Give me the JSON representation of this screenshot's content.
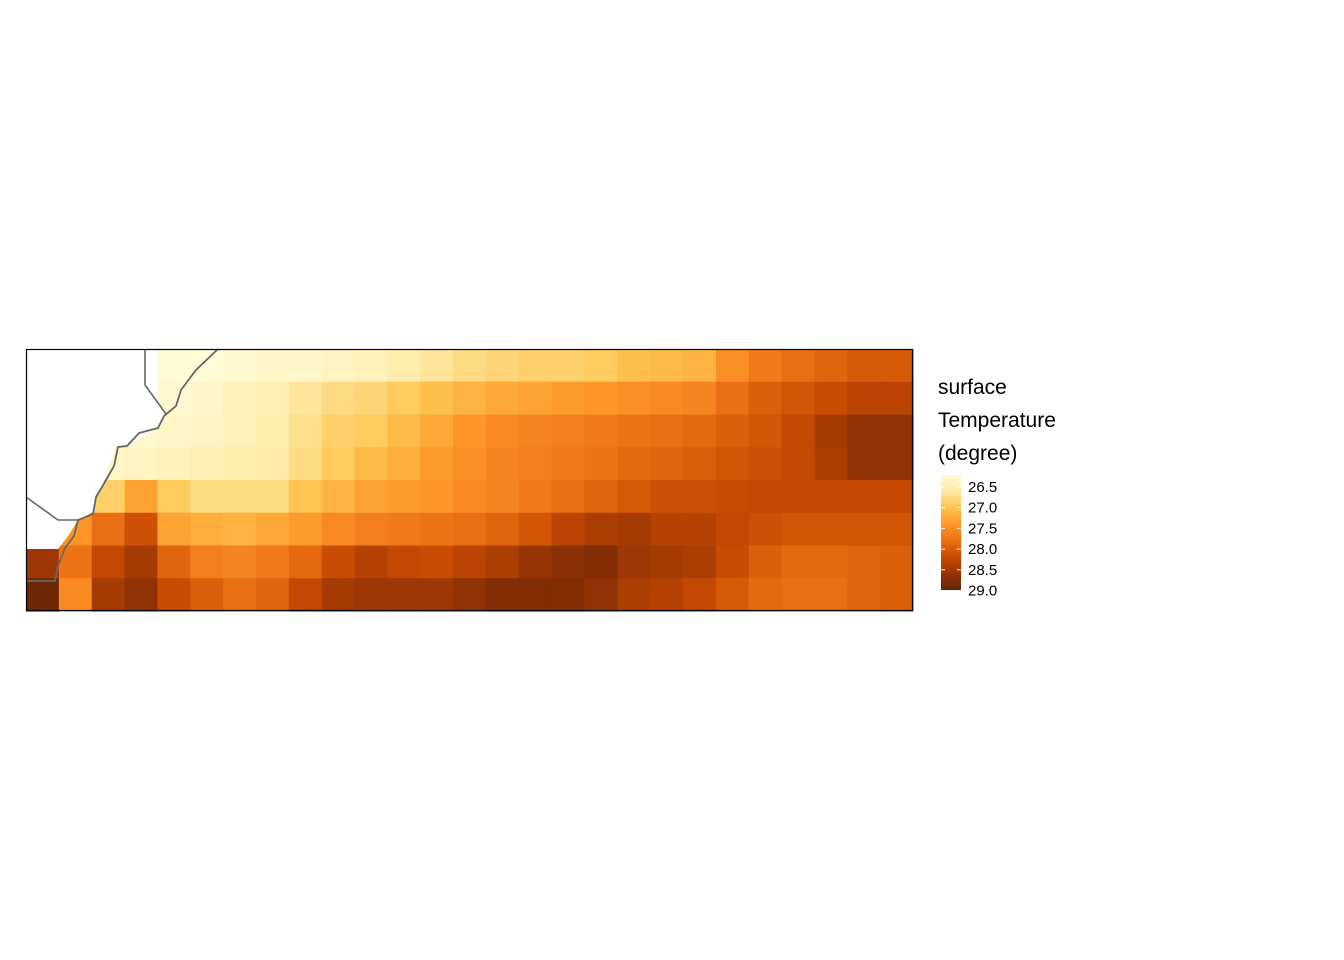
{
  "legend": {
    "title_lines": [
      "surface",
      "Temperature",
      "(degree)"
    ],
    "ticks": [
      "26.5",
      "27.0",
      "27.5",
      "28.0",
      "28.5",
      "29.0"
    ],
    "range": [
      26.5,
      29.0
    ]
  },
  "palette": {
    "low": "#fff7bc",
    "stops": [
      "#fffbd6",
      "#fee9a4",
      "#fec44f",
      "#fe9929",
      "#ec7014",
      "#cc4c02",
      "#993404",
      "#662506"
    ],
    "coastline": "#666666",
    "frame": "#000000",
    "land": "#ffffff"
  },
  "chart_data": {
    "type": "heatmap",
    "variable": "surface Temperature (degree)",
    "rows": 8,
    "cols": 27,
    "note_na": null,
    "grid": [
      [
        null,
        null,
        null,
        null,
        26.45,
        26.5,
        26.55,
        26.6,
        26.6,
        26.65,
        26.7,
        26.8,
        26.9,
        27.0,
        27.05,
        27.1,
        27.1,
        27.15,
        27.25,
        27.3,
        27.35,
        27.65,
        27.85,
        27.95,
        28.05,
        28.15,
        28.15
      ],
      [
        null,
        null,
        null,
        null,
        26.55,
        26.6,
        26.7,
        26.75,
        26.9,
        27.0,
        27.05,
        27.15,
        27.25,
        27.35,
        27.45,
        27.5,
        27.55,
        27.6,
        27.65,
        27.7,
        27.75,
        27.95,
        28.1,
        28.2,
        28.3,
        28.4,
        28.4
      ],
      [
        null,
        null,
        null,
        26.55,
        26.6,
        26.65,
        26.7,
        26.8,
        26.95,
        27.1,
        27.15,
        27.3,
        27.45,
        27.6,
        27.7,
        27.75,
        27.8,
        27.85,
        27.9,
        27.95,
        28.0,
        28.1,
        28.2,
        28.35,
        28.55,
        28.7,
        28.7
      ],
      [
        null,
        null,
        26.6,
        26.65,
        26.7,
        26.75,
        26.8,
        26.85,
        27.0,
        27.15,
        27.3,
        27.4,
        27.55,
        27.65,
        27.75,
        27.8,
        27.85,
        27.9,
        28.0,
        28.05,
        28.1,
        28.2,
        28.25,
        28.35,
        28.5,
        28.7,
        28.7
      ],
      [
        null,
        26.85,
        27.1,
        27.5,
        27.15,
        27.0,
        27.0,
        27.0,
        27.2,
        27.35,
        27.5,
        27.55,
        27.6,
        27.7,
        27.75,
        27.85,
        27.95,
        28.05,
        28.15,
        28.25,
        28.25,
        28.3,
        28.35,
        28.35,
        28.35,
        28.35,
        28.35
      ],
      [
        null,
        27.6,
        27.95,
        28.25,
        27.5,
        27.4,
        27.35,
        27.45,
        27.55,
        27.7,
        27.8,
        27.85,
        27.9,
        27.95,
        28.05,
        28.2,
        28.4,
        28.5,
        28.55,
        28.45,
        28.45,
        28.35,
        28.25,
        28.2,
        28.2,
        28.2,
        28.2
      ],
      [
        28.6,
        27.9,
        28.35,
        28.55,
        28.05,
        27.8,
        27.75,
        27.85,
        28.0,
        28.3,
        28.45,
        28.35,
        28.3,
        28.4,
        28.5,
        28.65,
        28.75,
        28.8,
        28.6,
        28.55,
        28.5,
        28.3,
        28.1,
        28.0,
        28.0,
        28.05,
        28.1
      ],
      [
        28.95,
        27.7,
        28.55,
        28.7,
        28.3,
        28.1,
        27.95,
        28.05,
        28.35,
        28.55,
        28.6,
        28.6,
        28.6,
        28.7,
        28.8,
        28.8,
        28.8,
        28.7,
        28.5,
        28.45,
        28.35,
        28.15,
        28.0,
        27.95,
        27.95,
        28.05,
        28.1
      ]
    ]
  }
}
